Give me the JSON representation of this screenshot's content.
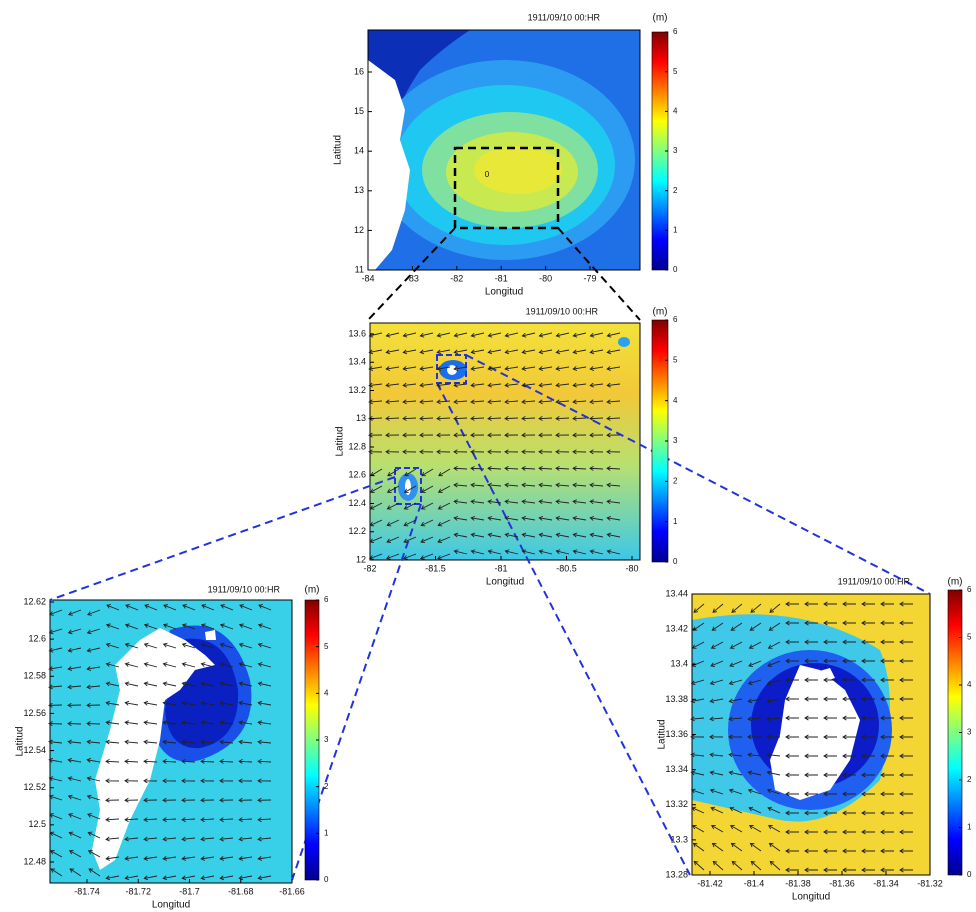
{
  "panels": [
    {
      "title": "1911/09/10 00:HR",
      "unit": "(m)",
      "xlabel": "Longitud",
      "ylabel": "Latitud",
      "xticks": [
        -84,
        -83,
        -82,
        -81,
        -80,
        -79
      ],
      "yticks": [
        11,
        12,
        13,
        14,
        15,
        16
      ],
      "colorbar_ticks": [
        0,
        1,
        2,
        3,
        4,
        5,
        6
      ],
      "contour_label": "0"
    },
    {
      "title": "1911/09/10 00:HR",
      "unit": "(m)",
      "xlabel": "Longitud",
      "ylabel": "Latitud",
      "xticks": [
        -82,
        -81.5,
        -81,
        -80.5,
        -80
      ],
      "yticks": [
        12,
        12.2,
        12.4,
        12.6,
        12.8,
        13,
        13.2,
        13.4,
        13.6
      ],
      "colorbar_ticks": [
        0,
        1,
        2,
        3,
        4,
        5,
        6
      ]
    },
    {
      "title": "1911/09/10 00:HR",
      "unit": "(m)",
      "xlabel": "Longitud",
      "ylabel": "Latitud",
      "xticks": [
        -81.74,
        -81.72,
        -81.7,
        -81.68,
        -81.66
      ],
      "yticks": [
        12.48,
        12.5,
        12.52,
        12.54,
        12.56,
        12.58,
        12.6,
        12.62
      ],
      "colorbar_ticks": [
        0,
        1,
        2,
        3,
        4,
        5,
        6
      ]
    },
    {
      "title": "1911/09/10 00:HR",
      "unit": "(m)",
      "xlabel": "Longitud",
      "ylabel": "Latitud",
      "xticks": [
        -81.42,
        -81.4,
        -81.38,
        -81.36,
        -81.34,
        -81.32
      ],
      "yticks": [
        13.28,
        13.3,
        13.32,
        13.34,
        13.36,
        13.38,
        13.4,
        13.42,
        13.44
      ],
      "colorbar_ticks": [
        0,
        1,
        2,
        3,
        4,
        5,
        6
      ]
    }
  ]
}
